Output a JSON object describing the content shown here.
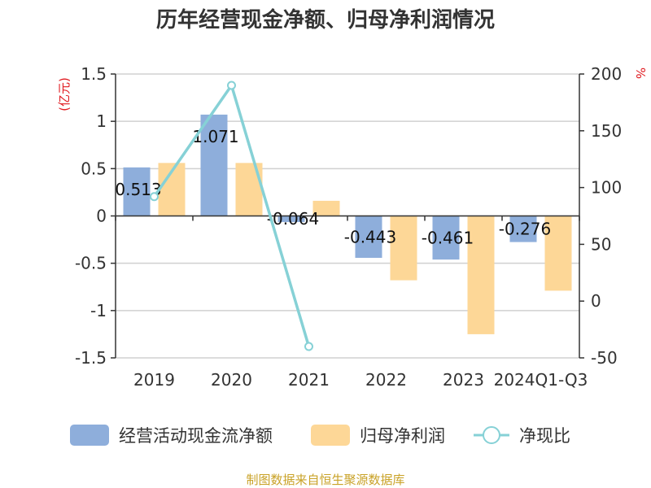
{
  "title": "历年经营现金净额、归母净利润情况",
  "source": "制图数据来自恒生聚源数据库",
  "chart_data": {
    "type": "bar",
    "categories": [
      "2019",
      "2020",
      "2021",
      "2022",
      "2023",
      "2024Q1-Q3"
    ],
    "series": [
      {
        "name": "经营活动现金流净额",
        "type": "bar",
        "axis": "left",
        "color": "#8eaedb",
        "values": [
          0.513,
          1.071,
          -0.064,
          -0.443,
          -0.461,
          -0.276
        ]
      },
      {
        "name": "归母净利润",
        "type": "bar",
        "axis": "left",
        "color": "#fdd797",
        "values": [
          0.56,
          0.56,
          0.16,
          -0.68,
          -1.25,
          -0.79
        ]
      },
      {
        "name": "净现比",
        "type": "line",
        "axis": "right",
        "color": "#86d1d6",
        "values": [
          92,
          190,
          -40,
          null,
          null,
          null
        ]
      }
    ],
    "data_labels": [
      "0.513",
      "1.071",
      "-0.064",
      "-0.443",
      "-0.461",
      "-0.276"
    ],
    "y_left": {
      "label": "(亿元)",
      "min": -1.5,
      "max": 1.5,
      "ticks": [
        1.5,
        1,
        0.5,
        0,
        -0.5,
        -1,
        -1.5
      ],
      "tick_labels": [
        "1.5",
        "1",
        "0.5",
        "0",
        "-0.5",
        "-1",
        "-1.5"
      ]
    },
    "y_right": {
      "label": "%",
      "min": -50,
      "max": 200,
      "ticks": [
        200,
        150,
        100,
        50,
        0,
        -50
      ],
      "tick_labels": [
        "200",
        "150",
        "100",
        "50",
        "0",
        "-50"
      ]
    },
    "grid": true,
    "legend_position": "bottom"
  }
}
